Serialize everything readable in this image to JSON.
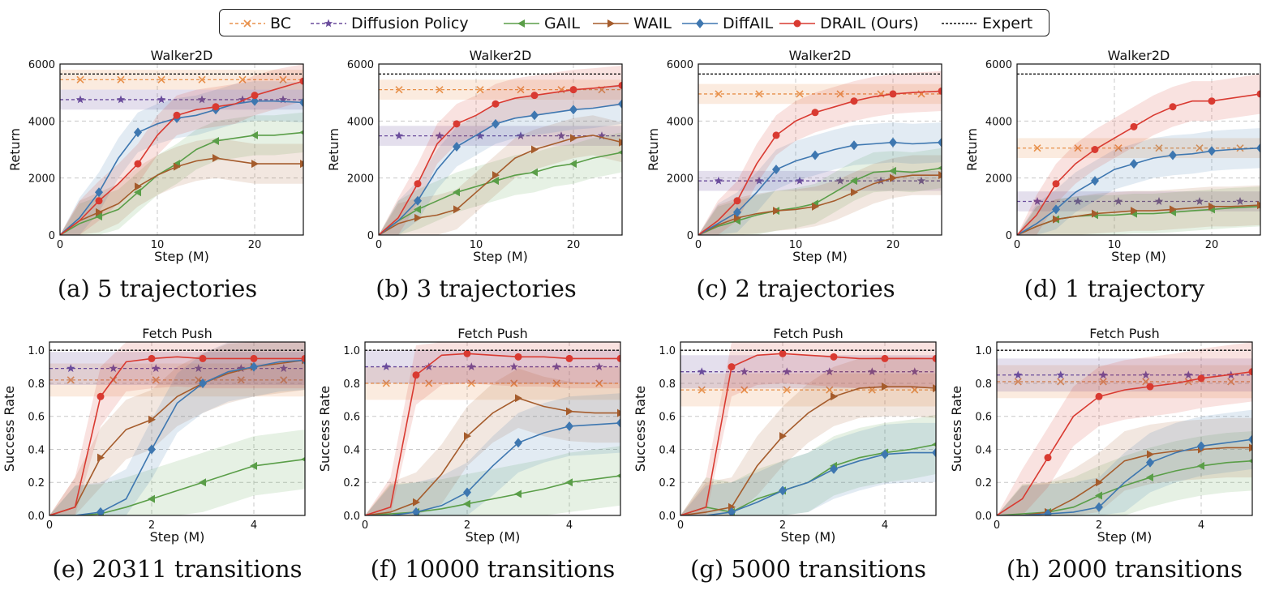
{
  "legend": {
    "entries": [
      {
        "label": "BC",
        "color": "#e8914b",
        "marker": "x",
        "dash": "4,3"
      },
      {
        "label": "Diffusion Policy",
        "color": "#6a4c9c",
        "marker": "star",
        "dash": "4,3"
      },
      {
        "label": "GAIL",
        "color": "#5a9e48",
        "marker": "triangle-left",
        "dash": ""
      },
      {
        "label": "WAIL",
        "color": "#a55c2c",
        "marker": "triangle-right",
        "dash": ""
      },
      {
        "label": "DiffAIL",
        "color": "#3e77b0",
        "marker": "diamond",
        "dash": ""
      },
      {
        "label": "DRAIL (Ours)",
        "color": "#d93a31",
        "marker": "circle",
        "dash": ""
      },
      {
        "label": "Expert",
        "color": "#111111",
        "marker": "none",
        "dash": "3,2"
      }
    ]
  },
  "chart_data": [
    {
      "type": "line",
      "title": "Walker2D",
      "caption": "(a) 5 trajectories",
      "xlabel": "Step (M)",
      "ylabel": "Return",
      "xlim": [
        0,
        25
      ],
      "ylim": [
        0,
        6000
      ],
      "xticks": [
        0,
        10,
        20
      ],
      "yticks": [
        0,
        2000,
        4000,
        6000
      ],
      "grid": true,
      "expert": 5650,
      "baselines": {
        "BC": 5450,
        "Diffusion Policy": 4750
      },
      "x": [
        0,
        2,
        4,
        6,
        8,
        10,
        12,
        14,
        16,
        18,
        20,
        22,
        25
      ],
      "series": [
        {
          "name": "GAIL",
          "values": [
            0,
            400,
            650,
            900,
            1500,
            2100,
            2500,
            3000,
            3300,
            3400,
            3500,
            3500,
            3600
          ]
        },
        {
          "name": "WAIL",
          "values": [
            0,
            500,
            800,
            1100,
            1700,
            2100,
            2400,
            2600,
            2700,
            2600,
            2500,
            2500,
            2500
          ]
        },
        {
          "name": "DiffAIL",
          "values": [
            0,
            600,
            1500,
            2700,
            3600,
            3900,
            4100,
            4200,
            4400,
            4600,
            4700,
            4700,
            4650
          ]
        },
        {
          "name": "DRAIL (Ours)",
          "values": [
            0,
            500,
            1200,
            1800,
            2500,
            3500,
            4200,
            4400,
            4500,
            4600,
            4900,
            5100,
            5400
          ]
        }
      ]
    },
    {
      "type": "line",
      "title": "Walker2D",
      "caption": "(b) 3 trajectories",
      "xlabel": "Step (M)",
      "ylabel": "Return",
      "xlim": [
        0,
        25
      ],
      "ylim": [
        0,
        6000
      ],
      "xticks": [
        0,
        10,
        20
      ],
      "yticks": [
        0,
        2000,
        4000,
        6000
      ],
      "grid": true,
      "expert": 5650,
      "baselines": {
        "BC": 5100,
        "Diffusion Policy": 3480
      },
      "x": [
        0,
        2,
        4,
        6,
        8,
        10,
        12,
        14,
        16,
        18,
        20,
        22,
        25
      ],
      "series": [
        {
          "name": "GAIL",
          "values": [
            0,
            500,
            900,
            1200,
            1500,
            1700,
            1900,
            2100,
            2200,
            2400,
            2500,
            2700,
            2900
          ]
        },
        {
          "name": "WAIL",
          "values": [
            0,
            400,
            600,
            700,
            900,
            1500,
            2100,
            2700,
            3000,
            3200,
            3400,
            3500,
            3250
          ]
        },
        {
          "name": "DiffAIL",
          "values": [
            0,
            500,
            1200,
            2300,
            3100,
            3500,
            3900,
            4100,
            4200,
            4300,
            4400,
            4450,
            4600
          ]
        },
        {
          "name": "DRAIL (Ours)",
          "values": [
            0,
            600,
            1800,
            3200,
            3900,
            4200,
            4600,
            4800,
            4900,
            5000,
            5100,
            5150,
            5250
          ]
        }
      ]
    },
    {
      "type": "line",
      "title": "Walker2D",
      "caption": "(c) 2 trajectories",
      "xlabel": "Step (M)",
      "ylabel": "Return",
      "xlim": [
        0,
        25
      ],
      "ylim": [
        0,
        6000
      ],
      "xticks": [
        0,
        10,
        20
      ],
      "yticks": [
        0,
        2000,
        4000,
        6000
      ],
      "grid": true,
      "expert": 5650,
      "baselines": {
        "BC": 4950,
        "Diffusion Policy": 1900
      },
      "x": [
        0,
        2,
        4,
        6,
        8,
        10,
        12,
        14,
        16,
        18,
        20,
        22,
        25
      ],
      "series": [
        {
          "name": "GAIL",
          "values": [
            0,
            300,
            500,
            700,
            850,
            950,
            1100,
            1500,
            1900,
            2200,
            2250,
            2200,
            2350
          ]
        },
        {
          "name": "WAIL",
          "values": [
            0,
            350,
            600,
            750,
            850,
            900,
            1000,
            1200,
            1500,
            1800,
            2000,
            2100,
            2100
          ]
        },
        {
          "name": "DiffAIL",
          "values": [
            0,
            400,
            800,
            1500,
            2300,
            2600,
            2800,
            3000,
            3150,
            3200,
            3250,
            3200,
            3250
          ]
        },
        {
          "name": "DRAIL (Ours)",
          "values": [
            0,
            500,
            1200,
            2500,
            3500,
            4000,
            4300,
            4500,
            4700,
            4850,
            4950,
            5000,
            5050
          ]
        }
      ]
    },
    {
      "type": "line",
      "title": "Walker2D",
      "caption": "(d) 1 trajectory",
      "xlabel": "Step (M)",
      "ylabel": "Return",
      "xlim": [
        0,
        25
      ],
      "ylim": [
        0,
        6000
      ],
      "xticks": [
        0,
        10,
        20
      ],
      "yticks": [
        0,
        2000,
        4000,
        6000
      ],
      "grid": true,
      "expert": 5650,
      "baselines": {
        "BC": 3050,
        "Diffusion Policy": 1180
      },
      "x": [
        0,
        2,
        4,
        6,
        8,
        10,
        12,
        14,
        16,
        18,
        20,
        22,
        25
      ],
      "series": [
        {
          "name": "GAIL",
          "values": [
            0,
            300,
            550,
            650,
            700,
            700,
            750,
            750,
            800,
            850,
            900,
            950,
            1000
          ]
        },
        {
          "name": "WAIL",
          "values": [
            0,
            300,
            550,
            650,
            750,
            800,
            850,
            850,
            900,
            950,
            1000,
            1000,
            1050
          ]
        },
        {
          "name": "DiffAIL",
          "values": [
            0,
            400,
            900,
            1500,
            1900,
            2300,
            2500,
            2700,
            2800,
            2850,
            2950,
            3000,
            3050
          ]
        },
        {
          "name": "DRAIL (Ours)",
          "values": [
            0,
            700,
            1800,
            2500,
            3000,
            3400,
            3800,
            4200,
            4500,
            4700,
            4700,
            4800,
            4950
          ]
        }
      ]
    },
    {
      "type": "line",
      "title": "Fetch Push",
      "caption": "(e) 20311 transitions",
      "xlabel": "Step (M)",
      "ylabel": "Success Rate",
      "xlim": [
        0,
        5
      ],
      "ylim": [
        0,
        1.05
      ],
      "xticks": [
        0,
        2,
        4
      ],
      "yticks": [
        0.0,
        0.2,
        0.4,
        0.6,
        0.8,
        1.0
      ],
      "grid": true,
      "expert": 1.0,
      "baselines": {
        "BC": 0.82,
        "Diffusion Policy": 0.89
      },
      "x": [
        0,
        0.5,
        1,
        1.5,
        2,
        2.5,
        3,
        3.5,
        4,
        4.5,
        5
      ],
      "series": [
        {
          "name": "GAIL",
          "values": [
            0,
            0,
            0.01,
            0.05,
            0.1,
            0.15,
            0.2,
            0.25,
            0.3,
            0.32,
            0.34
          ]
        },
        {
          "name": "WAIL",
          "values": [
            0,
            0.05,
            0.35,
            0.52,
            0.58,
            0.72,
            0.8,
            0.86,
            0.9,
            0.92,
            0.94
          ]
        },
        {
          "name": "DiffAIL",
          "values": [
            0,
            0,
            0.02,
            0.1,
            0.4,
            0.68,
            0.8,
            0.87,
            0.9,
            0.93,
            0.94
          ]
        },
        {
          "name": "DRAIL (Ours)",
          "values": [
            0,
            0.05,
            0.72,
            0.93,
            0.95,
            0.96,
            0.95,
            0.95,
            0.95,
            0.95,
            0.95
          ]
        }
      ]
    },
    {
      "type": "line",
      "title": "Fetch Push",
      "caption": "(f) 10000 transitions",
      "xlabel": "Step (M)",
      "ylabel": "Success Rate",
      "xlim": [
        0,
        5
      ],
      "ylim": [
        0,
        1.05
      ],
      "xticks": [
        0,
        2,
        4
      ],
      "yticks": [
        0.0,
        0.2,
        0.4,
        0.6,
        0.8,
        1.0
      ],
      "grid": true,
      "expert": 1.0,
      "baselines": {
        "BC": 0.8,
        "Diffusion Policy": 0.9
      },
      "x": [
        0,
        0.5,
        1,
        1.5,
        2,
        2.5,
        3,
        3.5,
        4,
        4.5,
        5
      ],
      "series": [
        {
          "name": "GAIL",
          "values": [
            0,
            0.01,
            0.02,
            0.04,
            0.07,
            0.1,
            0.13,
            0.16,
            0.2,
            0.22,
            0.24
          ]
        },
        {
          "name": "WAIL",
          "values": [
            0,
            0.02,
            0.08,
            0.25,
            0.48,
            0.62,
            0.71,
            0.66,
            0.63,
            0.62,
            0.62
          ]
        },
        {
          "name": "DiffAIL",
          "values": [
            0,
            0,
            0.02,
            0.06,
            0.14,
            0.3,
            0.44,
            0.5,
            0.54,
            0.55,
            0.56
          ]
        },
        {
          "name": "DRAIL (Ours)",
          "values": [
            0,
            0.05,
            0.85,
            0.97,
            0.98,
            0.97,
            0.96,
            0.96,
            0.95,
            0.95,
            0.95
          ]
        }
      ]
    },
    {
      "type": "line",
      "title": "Fetch Push",
      "caption": "(g) 5000 transitions",
      "xlabel": "Step (M)",
      "ylabel": "Success Rate",
      "xlim": [
        0,
        5
      ],
      "ylim": [
        0,
        1.05
      ],
      "xticks": [
        0,
        2,
        4
      ],
      "yticks": [
        0.0,
        0.2,
        0.4,
        0.6,
        0.8,
        1.0
      ],
      "grid": true,
      "expert": 1.0,
      "baselines": {
        "BC": 0.76,
        "Diffusion Policy": 0.87
      },
      "x": [
        0,
        0.5,
        1,
        1.5,
        2,
        2.5,
        3,
        3.5,
        4,
        4.5,
        5
      ],
      "series": [
        {
          "name": "GAIL",
          "values": [
            0,
            0.05,
            0.02,
            0.1,
            0.15,
            0.2,
            0.3,
            0.35,
            0.38,
            0.4,
            0.43
          ]
        },
        {
          "name": "WAIL",
          "values": [
            0,
            0.02,
            0.05,
            0.3,
            0.48,
            0.62,
            0.72,
            0.77,
            0.78,
            0.78,
            0.77
          ]
        },
        {
          "name": "DiffAIL",
          "values": [
            0,
            0,
            0.02,
            0.08,
            0.15,
            0.2,
            0.28,
            0.33,
            0.37,
            0.38,
            0.38
          ]
        },
        {
          "name": "DRAIL (Ours)",
          "values": [
            0,
            0.05,
            0.9,
            0.97,
            0.98,
            0.97,
            0.96,
            0.95,
            0.95,
            0.95,
            0.95
          ]
        }
      ]
    },
    {
      "type": "line",
      "title": "Fetch Push",
      "caption": "(h) 2000 transitions",
      "xlabel": "Step (M)",
      "ylabel": "Success Rate",
      "xlim": [
        0,
        5
      ],
      "ylim": [
        0,
        1.05
      ],
      "xticks": [
        0,
        2,
        4
      ],
      "yticks": [
        0.0,
        0.2,
        0.4,
        0.6,
        0.8,
        1.0
      ],
      "grid": true,
      "expert": 1.0,
      "baselines": {
        "BC": 0.81,
        "Diffusion Policy": 0.85
      },
      "x": [
        0,
        0.5,
        1,
        1.5,
        2,
        2.5,
        3,
        3.5,
        4,
        4.5,
        5
      ],
      "series": [
        {
          "name": "GAIL",
          "values": [
            0,
            0.01,
            0.02,
            0.05,
            0.12,
            0.18,
            0.23,
            0.27,
            0.3,
            0.32,
            0.33
          ]
        },
        {
          "name": "WAIL",
          "values": [
            0,
            0,
            0.02,
            0.1,
            0.2,
            0.33,
            0.37,
            0.39,
            0.4,
            0.41,
            0.41
          ]
        },
        {
          "name": "DiffAIL",
          "values": [
            0,
            0,
            0.01,
            0.02,
            0.05,
            0.2,
            0.32,
            0.38,
            0.42,
            0.44,
            0.46
          ]
        },
        {
          "name": "DRAIL (Ours)",
          "values": [
            0,
            0.1,
            0.35,
            0.6,
            0.72,
            0.76,
            0.78,
            0.8,
            0.83,
            0.85,
            0.87
          ]
        }
      ]
    }
  ]
}
